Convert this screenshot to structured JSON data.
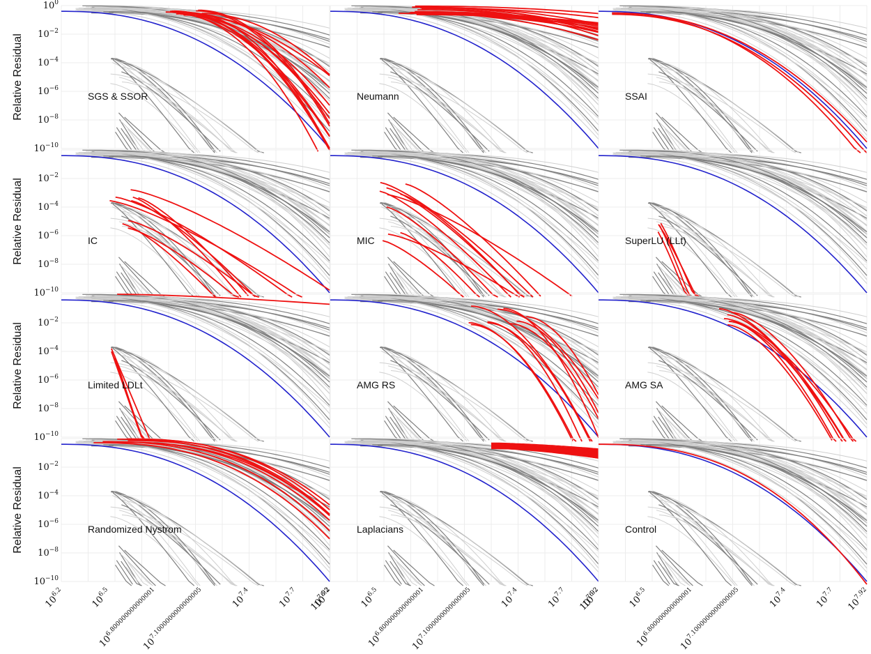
{
  "chart_data": {
    "type": "line",
    "ylabel": "Relative Residual",
    "y_scale": "log",
    "ylim": [
      1e-10,
      1
    ],
    "y_tick_labels": [
      {
        "base": "10",
        "exp": "0"
      },
      {
        "base": "10",
        "exp": "−2"
      },
      {
        "base": "10",
        "exp": "−4"
      },
      {
        "base": "10",
        "exp": "−6"
      },
      {
        "base": "10",
        "exp": "−8"
      },
      {
        "base": "10",
        "exp": "−10"
      }
    ],
    "x_scale": "log",
    "xlim_log10": [
      6.2,
      7.92
    ],
    "x_tick_labels": [
      {
        "log10": 6.2,
        "base": "10",
        "exp": "6.2"
      },
      {
        "log10": 6.5,
        "base": "10",
        "exp": "6.5"
      },
      {
        "log10": 6.8,
        "base": "10",
        "exp": "6.800000000000001"
      },
      {
        "log10": 7.1,
        "base": "10",
        "exp": "7.1000000000000005"
      },
      {
        "log10": 7.4,
        "base": "10",
        "exp": "7.4"
      },
      {
        "log10": 7.7,
        "base": "10",
        "exp": "7.7"
      },
      {
        "log10": 7.92,
        "base": "10",
        "exp": "7.92"
      }
    ],
    "grid": true,
    "colors": {
      "highlight": "#ee1111",
      "reference": "#2222cc",
      "gray_light": "#cfcfcf",
      "gray_dark": "#7f7f7f"
    },
    "panels": [
      {
        "label": "SGS & SSOR",
        "red_count": 14,
        "red_style": "steep"
      },
      {
        "label": "Neumann",
        "red_count": 16,
        "red_style": "flat"
      },
      {
        "label": "SSAI",
        "red_count": 3,
        "red_style": "near_ref"
      },
      {
        "label": "IC",
        "red_count": 9,
        "red_style": "early_drop"
      },
      {
        "label": "MIC",
        "red_count": 10,
        "red_style": "early_drop"
      },
      {
        "label": "SuperLU (LLt)",
        "red_count": 4,
        "red_style": "very_early"
      },
      {
        "label": "Limited LDLt",
        "red_count": 5,
        "red_style": "very_early_flat"
      },
      {
        "label": "AMG RS",
        "red_count": 10,
        "red_style": "late_steep"
      },
      {
        "label": "AMG SA",
        "red_count": 7,
        "red_style": "mid_steep"
      },
      {
        "label": "Randomized Nystrom",
        "red_count": 8,
        "red_style": "above_ref"
      },
      {
        "label": "Laplacians",
        "red_count": 30,
        "red_style": "band"
      },
      {
        "label": "Control",
        "red_count": 1,
        "red_style": "control"
      }
    ]
  }
}
